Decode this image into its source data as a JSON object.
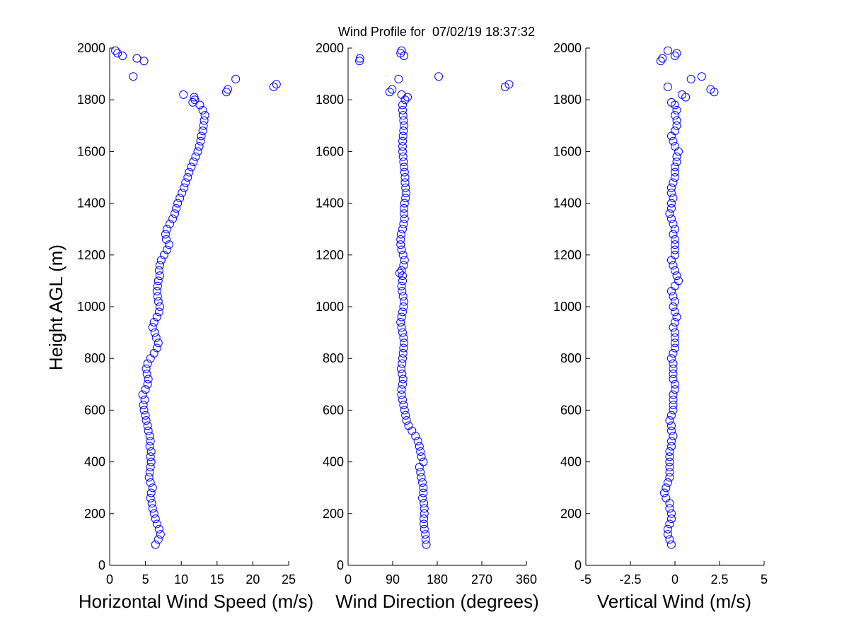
{
  "chart_data": {
    "title": "Wind Profile for  07/02/19 18:37:32",
    "ylabel": "Height AGL (m)",
    "ylim": [
      0,
      2000
    ],
    "yticks": [
      0,
      200,
      400,
      600,
      800,
      1000,
      1200,
      1400,
      1600,
      1800,
      2000
    ],
    "marker_color": "#0000ff",
    "panels": [
      {
        "type": "scatter",
        "xlabel": "Horizontal Wind Speed (m/s)",
        "xlim": [
          0,
          25
        ],
        "xticks": [
          0,
          5,
          10,
          15,
          20,
          25
        ],
        "xticklabels": [
          "0",
          "5",
          "10",
          "15",
          "20",
          "25"
        ],
        "points": [
          [
            6.4,
            80
          ],
          [
            6.8,
            100
          ],
          [
            7.1,
            120
          ],
          [
            6.9,
            140
          ],
          [
            6.6,
            160
          ],
          [
            6.4,
            180
          ],
          [
            6.2,
            200
          ],
          [
            6.0,
            220
          ],
          [
            5.9,
            240
          ],
          [
            5.7,
            260
          ],
          [
            5.8,
            280
          ],
          [
            6.0,
            300
          ],
          [
            5.7,
            320
          ],
          [
            5.5,
            340
          ],
          [
            5.6,
            360
          ],
          [
            5.7,
            380
          ],
          [
            5.8,
            400
          ],
          [
            5.7,
            420
          ],
          [
            5.8,
            440
          ],
          [
            5.6,
            460
          ],
          [
            5.7,
            480
          ],
          [
            5.6,
            500
          ],
          [
            5.4,
            520
          ],
          [
            5.3,
            540
          ],
          [
            5.1,
            560
          ],
          [
            5.0,
            580
          ],
          [
            4.8,
            600
          ],
          [
            4.7,
            620
          ],
          [
            4.9,
            640
          ],
          [
            4.6,
            660
          ],
          [
            5.0,
            680
          ],
          [
            5.3,
            700
          ],
          [
            5.4,
            720
          ],
          [
            5.2,
            740
          ],
          [
            5.1,
            760
          ],
          [
            5.3,
            780
          ],
          [
            5.7,
            800
          ],
          [
            6.2,
            820
          ],
          [
            6.6,
            840
          ],
          [
            6.8,
            860
          ],
          [
            6.5,
            880
          ],
          [
            6.3,
            900
          ],
          [
            6.0,
            920
          ],
          [
            6.2,
            940
          ],
          [
            6.6,
            960
          ],
          [
            6.9,
            980
          ],
          [
            7.0,
            1000
          ],
          [
            6.8,
            1020
          ],
          [
            6.7,
            1040
          ],
          [
            6.6,
            1060
          ],
          [
            6.7,
            1080
          ],
          [
            6.8,
            1100
          ],
          [
            7.0,
            1120
          ],
          [
            6.9,
            1140
          ],
          [
            7.0,
            1160
          ],
          [
            7.2,
            1180
          ],
          [
            7.6,
            1200
          ],
          [
            8.0,
            1220
          ],
          [
            8.3,
            1240
          ],
          [
            7.9,
            1260
          ],
          [
            7.8,
            1280
          ],
          [
            8.0,
            1300
          ],
          [
            8.4,
            1320
          ],
          [
            8.8,
            1340
          ],
          [
            9.1,
            1360
          ],
          [
            9.3,
            1380
          ],
          [
            9.5,
            1400
          ],
          [
            9.8,
            1420
          ],
          [
            10.1,
            1440
          ],
          [
            10.4,
            1460
          ],
          [
            10.6,
            1480
          ],
          [
            10.9,
            1500
          ],
          [
            11.1,
            1520
          ],
          [
            11.4,
            1540
          ],
          [
            11.7,
            1560
          ],
          [
            12.0,
            1580
          ],
          [
            12.3,
            1600
          ],
          [
            12.5,
            1620
          ],
          [
            12.7,
            1640
          ],
          [
            12.8,
            1660
          ],
          [
            13.0,
            1680
          ],
          [
            13.1,
            1700
          ],
          [
            13.2,
            1720
          ],
          [
            13.3,
            1740
          ],
          [
            13.0,
            1760
          ],
          [
            12.6,
            1780
          ],
          [
            11.6,
            1790
          ],
          [
            11.9,
            1800
          ],
          [
            11.8,
            1810
          ],
          [
            10.3,
            1820
          ],
          [
            16.3,
            1830
          ],
          [
            16.5,
            1840
          ],
          [
            22.9,
            1850
          ],
          [
            23.3,
            1860
          ],
          [
            17.6,
            1880
          ],
          [
            3.3,
            1890
          ],
          [
            4.8,
            1950
          ],
          [
            3.8,
            1960
          ],
          [
            1.8,
            1970
          ],
          [
            1.1,
            1980
          ],
          [
            0.8,
            1990
          ]
        ]
      },
      {
        "type": "scatter",
        "xlabel": "Wind Direction (degrees)",
        "xlim": [
          0,
          360
        ],
        "xticks": [
          0,
          90,
          180,
          270,
          360
        ],
        "xticklabels": [
          "0",
          "90",
          "180",
          "270",
          "360"
        ],
        "points": [
          [
            158,
            80
          ],
          [
            157,
            100
          ],
          [
            156,
            120
          ],
          [
            154,
            140
          ],
          [
            153,
            160
          ],
          [
            153,
            180
          ],
          [
            154,
            200
          ],
          [
            154,
            220
          ],
          [
            153,
            240
          ],
          [
            150,
            260
          ],
          [
            152,
            280
          ],
          [
            152,
            300
          ],
          [
            150,
            320
          ],
          [
            148,
            340
          ],
          [
            146,
            360
          ],
          [
            144,
            380
          ],
          [
            152,
            400
          ],
          [
            148,
            420
          ],
          [
            146,
            440
          ],
          [
            144,
            460
          ],
          [
            141,
            480
          ],
          [
            136,
            500
          ],
          [
            129,
            520
          ],
          [
            122,
            540
          ],
          [
            118,
            560
          ],
          [
            116,
            580
          ],
          [
            114,
            600
          ],
          [
            112,
            620
          ],
          [
            110,
            640
          ],
          [
            108,
            660
          ],
          [
            108,
            680
          ],
          [
            110,
            700
          ],
          [
            111,
            720
          ],
          [
            109,
            740
          ],
          [
            107,
            760
          ],
          [
            109,
            780
          ],
          [
            110,
            800
          ],
          [
            111,
            820
          ],
          [
            112,
            840
          ],
          [
            113,
            860
          ],
          [
            112,
            880
          ],
          [
            110,
            900
          ],
          [
            108,
            920
          ],
          [
            106,
            940
          ],
          [
            108,
            960
          ],
          [
            110,
            980
          ],
          [
            112,
            1000
          ],
          [
            113,
            1020
          ],
          [
            111,
            1040
          ],
          [
            109,
            1060
          ],
          [
            108,
            1080
          ],
          [
            110,
            1100
          ],
          [
            110,
            1120
          ],
          [
            104,
            1130
          ],
          [
            108,
            1140
          ],
          [
            112,
            1160
          ],
          [
            114,
            1180
          ],
          [
            111,
            1200
          ],
          [
            108,
            1220
          ],
          [
            106,
            1240
          ],
          [
            106,
            1260
          ],
          [
            107,
            1280
          ],
          [
            110,
            1300
          ],
          [
            112,
            1320
          ],
          [
            114,
            1340
          ],
          [
            113,
            1360
          ],
          [
            113,
            1380
          ],
          [
            114,
            1400
          ],
          [
            116,
            1420
          ],
          [
            117,
            1440
          ],
          [
            116,
            1460
          ],
          [
            115,
            1480
          ],
          [
            115,
            1500
          ],
          [
            114,
            1520
          ],
          [
            113,
            1540
          ],
          [
            112,
            1560
          ],
          [
            111,
            1580
          ],
          [
            110,
            1600
          ],
          [
            110,
            1620
          ],
          [
            110,
            1640
          ],
          [
            111,
            1660
          ],
          [
            112,
            1680
          ],
          [
            113,
            1700
          ],
          [
            112,
            1720
          ],
          [
            111,
            1740
          ],
          [
            110,
            1760
          ],
          [
            110,
            1780
          ],
          [
            115,
            1800
          ],
          [
            120,
            1810
          ],
          [
            108,
            1820
          ],
          [
            84,
            1830
          ],
          [
            89,
            1840
          ],
          [
            317,
            1850
          ],
          [
            325,
            1860
          ],
          [
            102,
            1880
          ],
          [
            183,
            1890
          ],
          [
            23,
            1950
          ],
          [
            24,
            1960
          ],
          [
            113,
            1970
          ],
          [
            106,
            1980
          ],
          [
            108,
            1990
          ]
        ]
      },
      {
        "type": "scatter",
        "xlabel": "Vertical Wind (m/s)",
        "xlim": [
          -5,
          5
        ],
        "xticks": [
          -5,
          -2.5,
          0,
          2.5,
          5
        ],
        "xticklabels": [
          "-5",
          "-2.5",
          "0",
          "2.5",
          "5"
        ],
        "points": [
          [
            -0.2,
            80
          ],
          [
            -0.3,
            100
          ],
          [
            -0.4,
            120
          ],
          [
            -0.4,
            140
          ],
          [
            -0.3,
            160
          ],
          [
            -0.2,
            180
          ],
          [
            -0.2,
            200
          ],
          [
            -0.3,
            220
          ],
          [
            -0.3,
            240
          ],
          [
            -0.5,
            260
          ],
          [
            -0.6,
            280
          ],
          [
            -0.5,
            300
          ],
          [
            -0.4,
            320
          ],
          [
            -0.3,
            340
          ],
          [
            -0.3,
            360
          ],
          [
            -0.3,
            380
          ],
          [
            -0.3,
            400
          ],
          [
            -0.3,
            420
          ],
          [
            -0.3,
            440
          ],
          [
            -0.2,
            460
          ],
          [
            -0.2,
            480
          ],
          [
            -0.1,
            500
          ],
          [
            -0.2,
            520
          ],
          [
            -0.2,
            540
          ],
          [
            -0.3,
            560
          ],
          [
            -0.2,
            580
          ],
          [
            -0.1,
            600
          ],
          [
            -0.1,
            620
          ],
          [
            -0.1,
            640
          ],
          [
            -0.1,
            660
          ],
          [
            0.0,
            680
          ],
          [
            0.0,
            700
          ],
          [
            -0.1,
            720
          ],
          [
            -0.1,
            740
          ],
          [
            -0.1,
            760
          ],
          [
            -0.1,
            780
          ],
          [
            -0.2,
            800
          ],
          [
            -0.1,
            820
          ],
          [
            0.0,
            840
          ],
          [
            0.0,
            860
          ],
          [
            0.0,
            880
          ],
          [
            0.0,
            900
          ],
          [
            -0.1,
            920
          ],
          [
            0.0,
            940
          ],
          [
            0.1,
            960
          ],
          [
            0.0,
            980
          ],
          [
            -0.1,
            1000
          ],
          [
            0.0,
            1020
          ],
          [
            -0.1,
            1040
          ],
          [
            -0.2,
            1060
          ],
          [
            0.0,
            1080
          ],
          [
            0.2,
            1100
          ],
          [
            0.1,
            1120
          ],
          [
            0.0,
            1140
          ],
          [
            -0.1,
            1160
          ],
          [
            -0.2,
            1180
          ],
          [
            0.0,
            1200
          ],
          [
            0.0,
            1220
          ],
          [
            0.0,
            1240
          ],
          [
            0.0,
            1260
          ],
          [
            -0.1,
            1280
          ],
          [
            0.0,
            1300
          ],
          [
            -0.1,
            1320
          ],
          [
            -0.2,
            1340
          ],
          [
            -0.3,
            1360
          ],
          [
            -0.2,
            1380
          ],
          [
            -0.2,
            1400
          ],
          [
            -0.1,
            1420
          ],
          [
            -0.2,
            1440
          ],
          [
            -0.2,
            1460
          ],
          [
            -0.1,
            1480
          ],
          [
            0.0,
            1500
          ],
          [
            0.0,
            1520
          ],
          [
            0.0,
            1540
          ],
          [
            0.1,
            1560
          ],
          [
            0.1,
            1580
          ],
          [
            0.2,
            1600
          ],
          [
            0.0,
            1620
          ],
          [
            -0.1,
            1640
          ],
          [
            -0.2,
            1660
          ],
          [
            0.0,
            1680
          ],
          [
            0.1,
            1700
          ],
          [
            0.1,
            1720
          ],
          [
            0.0,
            1740
          ],
          [
            0.1,
            1760
          ],
          [
            0.0,
            1780
          ],
          [
            -0.2,
            1790
          ],
          [
            0.6,
            1810
          ],
          [
            0.4,
            1820
          ],
          [
            2.2,
            1830
          ],
          [
            2.0,
            1840
          ],
          [
            -0.4,
            1850
          ],
          [
            0.9,
            1880
          ],
          [
            1.5,
            1890
          ],
          [
            -0.8,
            1950
          ],
          [
            -0.7,
            1960
          ],
          [
            0.0,
            1970
          ],
          [
            0.1,
            1980
          ],
          [
            -0.4,
            1990
          ]
        ]
      }
    ]
  }
}
